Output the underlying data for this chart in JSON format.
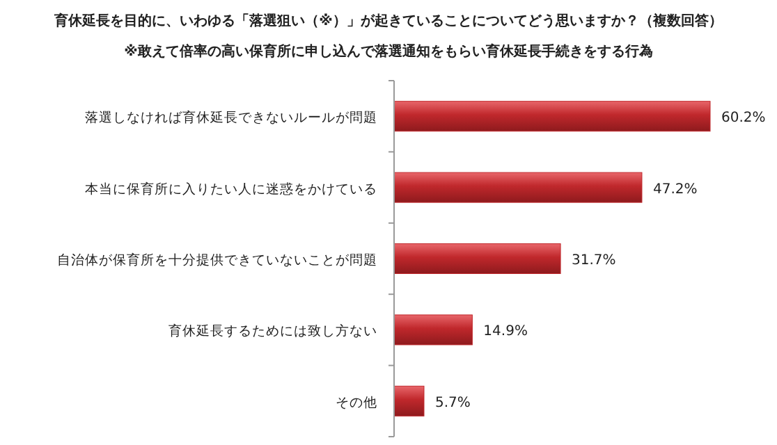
{
  "chart_data": {
    "type": "bar",
    "orientation": "horizontal",
    "title": "育休延長を目的に、いわゆる「落選狙い（※）」が起きていることについてどう思いますか？（複数回答）",
    "subtitle": "※敢えて倍率の高い保育所に申し込んで落選通知をもらい育休延長手続きをする行為",
    "categories": [
      "落選しなければ育休延長できないルールが問題",
      "本当に保育所に入りたい人に迷惑をかけている",
      "自治体が保育所を十分提供できていないことが問題",
      "育休延長するためには致し方ない",
      "その他"
    ],
    "values": [
      60.2,
      47.2,
      31.7,
      14.9,
      5.7
    ],
    "value_labels": [
      "60.2%",
      "47.2%",
      "31.7%",
      "14.9%",
      "5.7%"
    ],
    "color": "#c0282c"
  }
}
